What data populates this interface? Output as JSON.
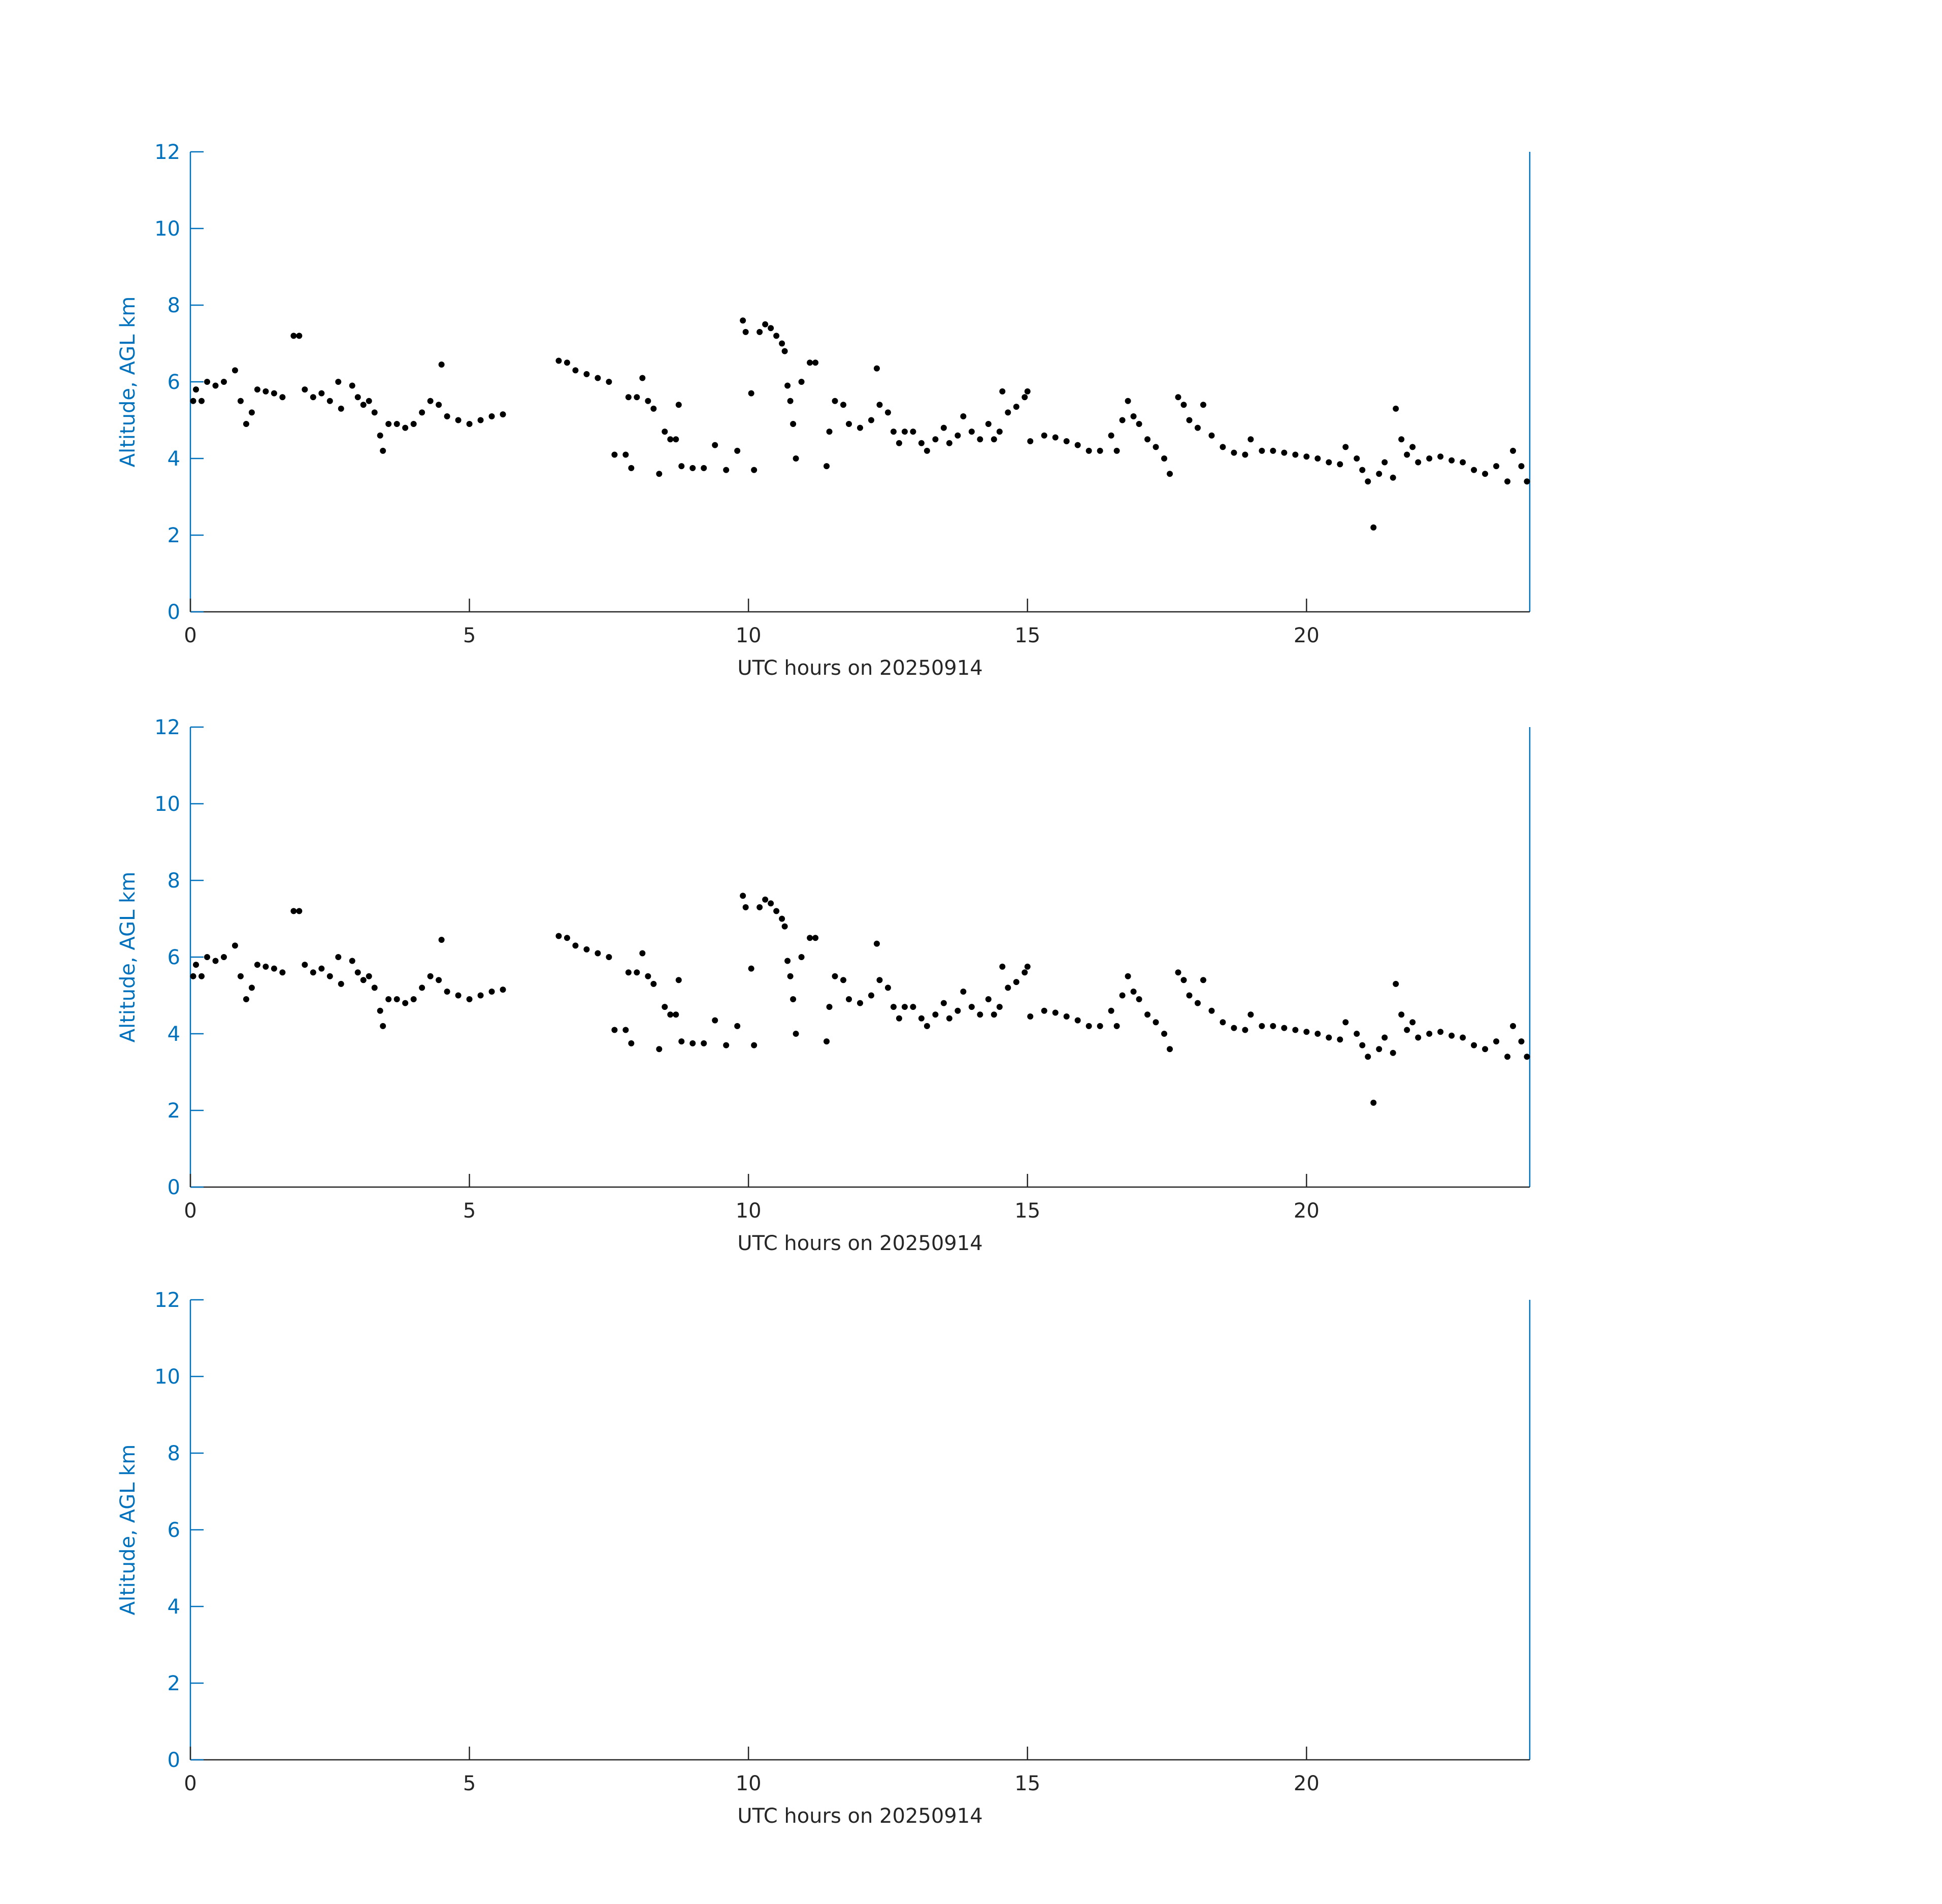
{
  "chart_data": [
    {
      "type": "scatter",
      "xlabel": "UTC hours on 20250914",
      "ylabel": "Altitude, AGL km",
      "xlim": [
        0,
        24
      ],
      "xticks": [
        0,
        5,
        10,
        15,
        20
      ],
      "ylim": [
        0,
        12
      ],
      "yticks": [
        0,
        2,
        4,
        6,
        8,
        10,
        12
      ],
      "color": "#000000",
      "x_axis_color": "#262626",
      "y_axis_color": "#0072bd",
      "grid": false,
      "x": [
        0.05,
        0.1,
        0.2,
        0.3,
        0.45,
        0.6,
        0.8,
        0.9,
        1.0,
        1.1,
        1.2,
        1.35,
        1.5,
        1.65,
        1.85,
        1.95,
        2.05,
        2.2,
        2.35,
        2.5,
        2.65,
        2.7,
        2.9,
        3.0,
        3.1,
        3.2,
        3.3,
        3.4,
        3.45,
        3.55,
        3.7,
        3.85,
        4.0,
        4.15,
        4.3,
        4.45,
        4.5,
        4.6,
        4.8,
        5.0,
        5.2,
        5.4,
        5.6,
        6.6,
        6.75,
        6.9,
        7.1,
        7.3,
        7.5,
        7.6,
        7.8,
        7.85,
        7.9,
        8.0,
        8.1,
        8.2,
        8.3,
        8.4,
        8.5,
        8.6,
        8.7,
        8.75,
        8.8,
        9.0,
        9.2,
        9.4,
        9.6,
        9.8,
        9.9,
        9.95,
        10.05,
        10.1,
        10.2,
        10.3,
        10.4,
        10.5,
        10.6,
        10.65,
        10.7,
        10.75,
        10.8,
        10.85,
        10.95,
        11.1,
        11.2,
        11.4,
        11.45,
        11.55,
        11.7,
        11.8,
        12.0,
        12.2,
        12.3,
        12.35,
        12.5,
        12.6,
        12.7,
        12.8,
        12.95,
        13.1,
        13.2,
        13.35,
        13.5,
        13.6,
        13.75,
        13.85,
        14.0,
        14.15,
        14.3,
        14.4,
        14.5,
        14.55,
        14.65,
        14.8,
        14.95,
        15.0,
        15.05,
        15.3,
        15.5,
        15.7,
        15.9,
        16.1,
        16.3,
        16.5,
        16.6,
        16.7,
        16.8,
        16.9,
        17.0,
        17.15,
        17.3,
        17.45,
        17.55,
        17.7,
        17.8,
        17.9,
        18.05,
        18.15,
        18.3,
        18.5,
        18.7,
        18.9,
        19.0,
        19.2,
        19.4,
        19.6,
        19.8,
        20.0,
        20.2,
        20.4,
        20.6,
        20.7,
        20.9,
        21.0,
        21.1,
        21.2,
        21.3,
        21.4,
        21.55,
        21.6,
        21.7,
        21.8,
        21.9,
        22.0,
        22.2,
        22.4,
        22.6,
        22.8,
        23.0,
        23.2,
        23.4,
        23.6,
        23.7,
        23.85,
        23.95
      ],
      "values": [
        5.5,
        5.8,
        5.5,
        6.0,
        5.9,
        6.0,
        6.3,
        5.5,
        4.9,
        5.2,
        5.8,
        5.75,
        5.7,
        5.6,
        7.2,
        7.2,
        5.8,
        5.6,
        5.7,
        5.5,
        6.0,
        5.3,
        5.9,
        5.6,
        5.4,
        5.5,
        5.2,
        4.6,
        4.2,
        4.9,
        4.9,
        4.8,
        4.9,
        5.2,
        5.5,
        5.4,
        6.45,
        5.1,
        5.0,
        4.9,
        5.0,
        5.1,
        5.15,
        6.55,
        6.5,
        6.3,
        6.2,
        6.1,
        6.0,
        4.1,
        4.1,
        5.6,
        3.75,
        5.6,
        6.1,
        5.5,
        5.3,
        3.6,
        4.7,
        4.5,
        4.5,
        5.4,
        3.8,
        3.75,
        3.75,
        4.35,
        3.7,
        4.2,
        7.6,
        7.3,
        5.7,
        3.7,
        7.3,
        7.5,
        7.4,
        7.2,
        7.0,
        6.8,
        5.9,
        5.5,
        4.9,
        4.0,
        6.0,
        6.5,
        6.5,
        3.8,
        4.7,
        5.5,
        5.4,
        4.9,
        4.8,
        5.0,
        6.35,
        5.4,
        5.2,
        4.7,
        4.4,
        4.7,
        4.7,
        4.4,
        4.2,
        4.5,
        4.8,
        4.4,
        4.6,
        5.1,
        4.7,
        4.5,
        4.9,
        4.5,
        4.7,
        5.75,
        5.2,
        5.35,
        5.6,
        5.75,
        4.45,
        4.6,
        4.55,
        4.45,
        4.35,
        4.2,
        4.2,
        4.6,
        4.2,
        5.0,
        5.5,
        5.1,
        4.9,
        4.5,
        4.3,
        4.0,
        3.6,
        5.6,
        5.4,
        5.0,
        4.8,
        5.4,
        4.6,
        4.3,
        4.15,
        4.1,
        4.5,
        4.2,
        4.2,
        4.15,
        4.1,
        4.05,
        4.0,
        3.9,
        3.85,
        4.3,
        4.0,
        3.7,
        3.4,
        2.2,
        3.6,
        3.9,
        3.5,
        5.3,
        4.5,
        4.1,
        4.3,
        3.9,
        4.0,
        4.05,
        3.95,
        3.9,
        3.7,
        3.6,
        3.8,
        3.4,
        4.2,
        3.8,
        3.4
      ]
    },
    {
      "type": "scatter",
      "xlabel": "UTC hours on 20250914",
      "ylabel": "Altitude, AGL km",
      "xlim": [
        0,
        24
      ],
      "xticks": [
        0,
        5,
        10,
        15,
        20
      ],
      "ylim": [
        0,
        12
      ],
      "yticks": [
        0,
        2,
        4,
        6,
        8,
        10,
        12
      ],
      "color": "#000000",
      "x_axis_color": "#262626",
      "y_axis_color": "#0072bd",
      "grid": false,
      "x": [
        0.05,
        0.1,
        0.2,
        0.3,
        0.45,
        0.6,
        0.8,
        0.9,
        1.0,
        1.1,
        1.2,
        1.35,
        1.5,
        1.65,
        1.85,
        1.95,
        2.05,
        2.2,
        2.35,
        2.5,
        2.65,
        2.7,
        2.9,
        3.0,
        3.1,
        3.2,
        3.3,
        3.4,
        3.45,
        3.55,
        3.7,
        3.85,
        4.0,
        4.15,
        4.3,
        4.45,
        4.5,
        4.6,
        4.8,
        5.0,
        5.2,
        5.4,
        5.6,
        6.6,
        6.75,
        6.9,
        7.1,
        7.3,
        7.5,
        7.6,
        7.8,
        7.85,
        7.9,
        8.0,
        8.1,
        8.2,
        8.3,
        8.4,
        8.5,
        8.6,
        8.7,
        8.75,
        8.8,
        9.0,
        9.2,
        9.4,
        9.6,
        9.8,
        9.9,
        9.95,
        10.05,
        10.1,
        10.2,
        10.3,
        10.4,
        10.5,
        10.6,
        10.65,
        10.7,
        10.75,
        10.8,
        10.85,
        10.95,
        11.1,
        11.2,
        11.4,
        11.45,
        11.55,
        11.7,
        11.8,
        12.0,
        12.2,
        12.3,
        12.35,
        12.5,
        12.6,
        12.7,
        12.8,
        12.95,
        13.1,
        13.2,
        13.35,
        13.5,
        13.6,
        13.75,
        13.85,
        14.0,
        14.15,
        14.3,
        14.4,
        14.5,
        14.55,
        14.65,
        14.8,
        14.95,
        15.0,
        15.05,
        15.3,
        15.5,
        15.7,
        15.9,
        16.1,
        16.3,
        16.5,
        16.6,
        16.7,
        16.8,
        16.9,
        17.0,
        17.15,
        17.3,
        17.45,
        17.55,
        17.7,
        17.8,
        17.9,
        18.05,
        18.15,
        18.3,
        18.5,
        18.7,
        18.9,
        19.0,
        19.2,
        19.4,
        19.6,
        19.8,
        20.0,
        20.2,
        20.4,
        20.6,
        20.7,
        20.9,
        21.0,
        21.1,
        21.2,
        21.3,
        21.4,
        21.55,
        21.6,
        21.7,
        21.8,
        21.9,
        22.0,
        22.2,
        22.4,
        22.6,
        22.8,
        23.0,
        23.2,
        23.4,
        23.6,
        23.7,
        23.85,
        23.95
      ],
      "values": [
        5.5,
        5.8,
        5.5,
        6.0,
        5.9,
        6.0,
        6.3,
        5.5,
        4.9,
        5.2,
        5.8,
        5.75,
        5.7,
        5.6,
        7.2,
        7.2,
        5.8,
        5.6,
        5.7,
        5.5,
        6.0,
        5.3,
        5.9,
        5.6,
        5.4,
        5.5,
        5.2,
        4.6,
        4.2,
        4.9,
        4.9,
        4.8,
        4.9,
        5.2,
        5.5,
        5.4,
        6.45,
        5.1,
        5.0,
        4.9,
        5.0,
        5.1,
        5.15,
        6.55,
        6.5,
        6.3,
        6.2,
        6.1,
        6.0,
        4.1,
        4.1,
        5.6,
        3.75,
        5.6,
        6.1,
        5.5,
        5.3,
        3.6,
        4.7,
        4.5,
        4.5,
        5.4,
        3.8,
        3.75,
        3.75,
        4.35,
        3.7,
        4.2,
        7.6,
        7.3,
        5.7,
        3.7,
        7.3,
        7.5,
        7.4,
        7.2,
        7.0,
        6.8,
        5.9,
        5.5,
        4.9,
        4.0,
        6.0,
        6.5,
        6.5,
        3.8,
        4.7,
        5.5,
        5.4,
        4.9,
        4.8,
        5.0,
        6.35,
        5.4,
        5.2,
        4.7,
        4.4,
        4.7,
        4.7,
        4.4,
        4.2,
        4.5,
        4.8,
        4.4,
        4.6,
        5.1,
        4.7,
        4.5,
        4.9,
        4.5,
        4.7,
        5.75,
        5.2,
        5.35,
        5.6,
        5.75,
        4.45,
        4.6,
        4.55,
        4.45,
        4.35,
        4.2,
        4.2,
        4.6,
        4.2,
        5.0,
        5.5,
        5.1,
        4.9,
        4.5,
        4.3,
        4.0,
        3.6,
        5.6,
        5.4,
        5.0,
        4.8,
        5.4,
        4.6,
        4.3,
        4.15,
        4.1,
        4.5,
        4.2,
        4.2,
        4.15,
        4.1,
        4.05,
        4.0,
        3.9,
        3.85,
        4.3,
        4.0,
        3.7,
        3.4,
        2.2,
        3.6,
        3.9,
        3.5,
        5.3,
        4.5,
        4.1,
        4.3,
        3.9,
        4.0,
        4.05,
        3.95,
        3.9,
        3.7,
        3.6,
        3.8,
        3.4,
        4.2,
        3.8,
        3.4
      ]
    },
    {
      "type": "scatter",
      "xlabel": "UTC hours on 20250914",
      "ylabel": "Altitude, AGL km",
      "xlim": [
        0,
        24
      ],
      "xticks": [
        0,
        5,
        10,
        15,
        20
      ],
      "ylim": [
        0,
        12
      ],
      "yticks": [
        0,
        2,
        4,
        6,
        8,
        10,
        12
      ],
      "color": "#000000",
      "x_axis_color": "#262626",
      "y_axis_color": "#0072bd",
      "grid": false,
      "x": [],
      "values": []
    }
  ]
}
